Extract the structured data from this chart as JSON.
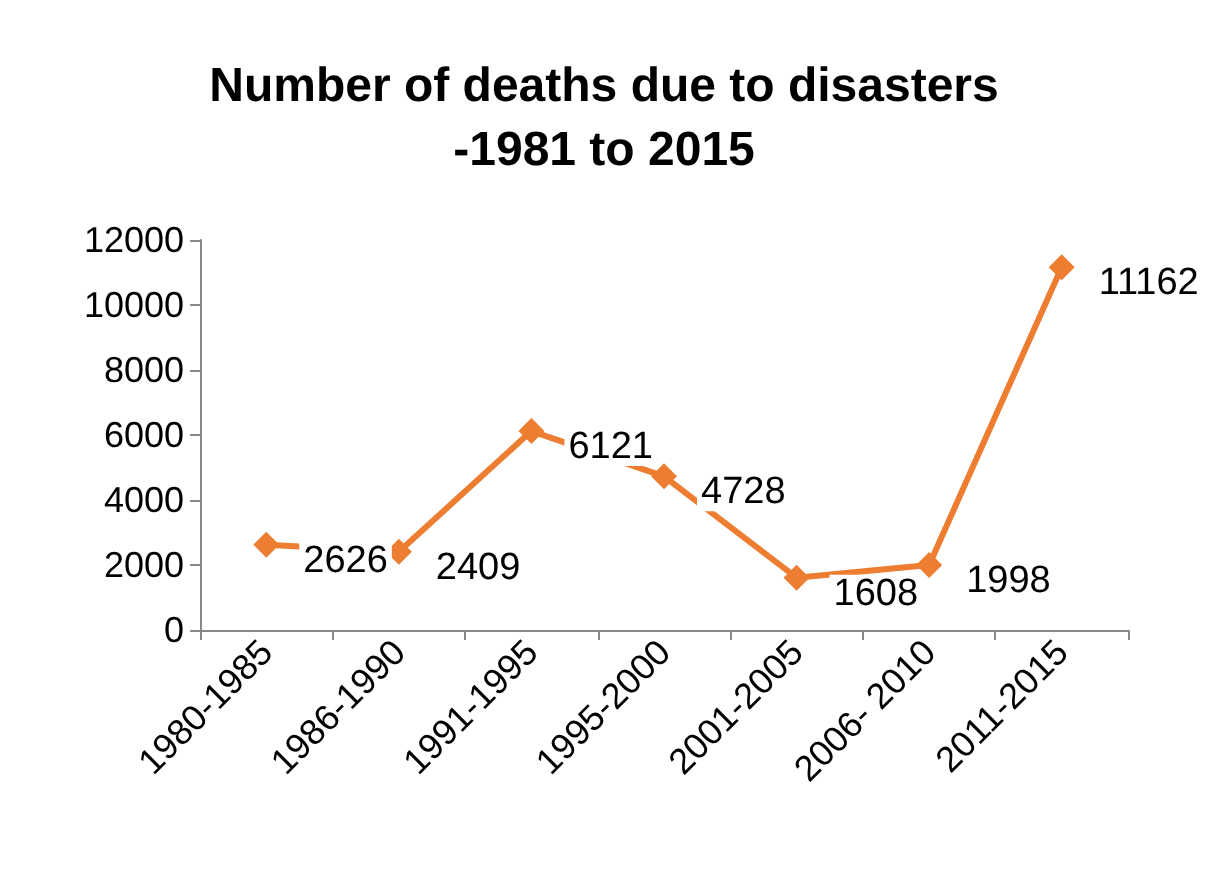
{
  "chart_data": {
    "type": "line",
    "title": "Number of deaths due to disasters\n-1981 to 2015",
    "categories": [
      "1980-1985",
      "1986-1990",
      "1991-1995",
      "1995-2000",
      "2001-2005",
      "2006- 2010",
      "2011-2015"
    ],
    "series": [
      {
        "color": "#ed7d31",
        "values": [
          2626,
          2409,
          6121,
          4728,
          1608,
          1998,
          11162
        ]
      }
    ],
    "ylim": [
      0,
      12000
    ],
    "yticks": [
      0,
      2000,
      4000,
      6000,
      8000,
      10000,
      12000
    ],
    "grid": false,
    "marker": "diamond",
    "line_style": "solid",
    "data_labels": true
  }
}
